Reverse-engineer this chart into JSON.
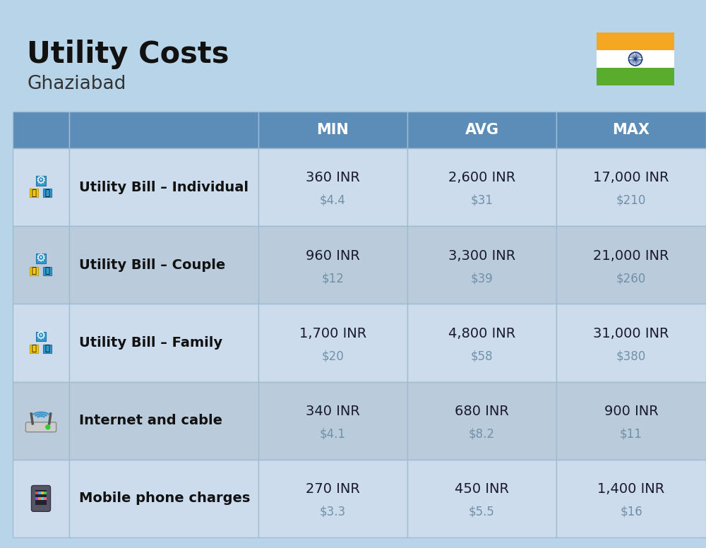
{
  "title": "Utility Costs",
  "subtitle": "Ghaziabad",
  "background_color": "#b8d4e8",
  "header_bg_color": "#5b8db8",
  "header_text_color": "#ffffff",
  "row_bg_colors": [
    "#ccdcec",
    "#baccdc"
  ],
  "cell_line_color": "#a0bcd0",
  "rows": [
    {
      "label": "Utility Bill – Individual",
      "min_inr": "360 INR",
      "min_usd": "$4.4",
      "avg_inr": "2,600 INR",
      "avg_usd": "$31",
      "max_inr": "17,000 INR",
      "max_usd": "$210"
    },
    {
      "label": "Utility Bill – Couple",
      "min_inr": "960 INR",
      "min_usd": "$12",
      "avg_inr": "3,300 INR",
      "avg_usd": "$39",
      "max_inr": "21,000 INR",
      "max_usd": "$260"
    },
    {
      "label": "Utility Bill – Family",
      "min_inr": "1,700 INR",
      "min_usd": "$20",
      "avg_inr": "4,800 INR",
      "avg_usd": "$58",
      "max_inr": "31,000 INR",
      "max_usd": "$380"
    },
    {
      "label": "Internet and cable",
      "min_inr": "340 INR",
      "min_usd": "$4.1",
      "avg_inr": "680 INR",
      "avg_usd": "$8.2",
      "max_inr": "900 INR",
      "max_usd": "$11"
    },
    {
      "label": "Mobile phone charges",
      "min_inr": "270 INR",
      "min_usd": "$3.3",
      "avg_inr": "450 INR",
      "avg_usd": "$5.5",
      "max_inr": "1,400 INR",
      "max_usd": "$16"
    }
  ],
  "col_headers": [
    "MIN",
    "AVG",
    "MAX"
  ],
  "title_fontsize": 30,
  "subtitle_fontsize": 19,
  "header_fontsize": 15,
  "label_fontsize": 14,
  "value_fontsize": 14,
  "usd_fontsize": 12,
  "usd_color": "#7090a8",
  "label_color": "#111111",
  "value_color": "#1a1a2e",
  "flag_orange": "#f5a623",
  "flag_white": "#ffffff",
  "flag_green": "#5aac2c",
  "flag_chakra": "#1a3a8a"
}
